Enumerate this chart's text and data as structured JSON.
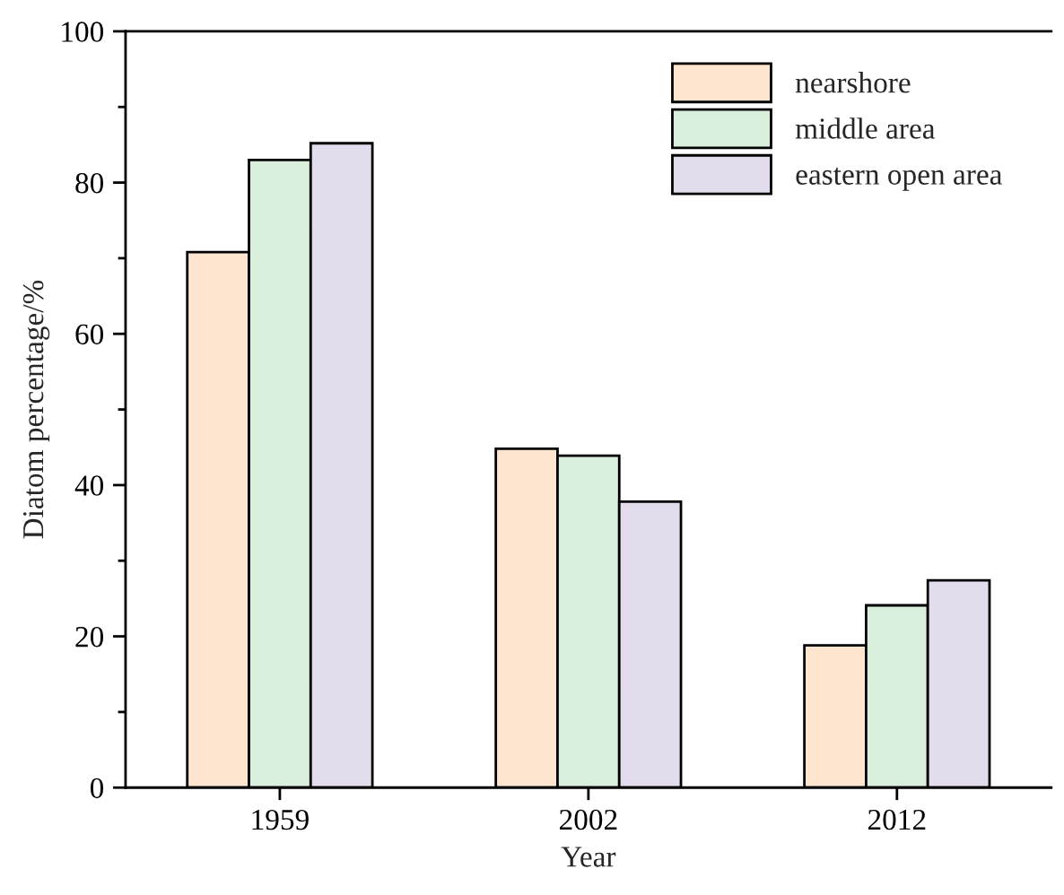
{
  "chart_data": {
    "type": "bar",
    "xlabel": "Year",
    "ylabel": "Diatom percentage/%",
    "categories": [
      "1959",
      "2002",
      "2012"
    ],
    "series": [
      {
        "name": "nearshore",
        "color": "#fde5d0",
        "values": [
          70.8,
          44.8,
          18.8
        ]
      },
      {
        "name": "middle area",
        "color": "#d9eedb",
        "values": [
          83.0,
          43.9,
          24.1
        ]
      },
      {
        "name": "eastern open area",
        "color": "#e2dced",
        "values": [
          85.2,
          37.8,
          27.4
        ]
      }
    ],
    "ylim": [
      0,
      100
    ],
    "yticks": [
      0,
      {
        "value": 10,
        "label": null
      },
      20,
      {
        "value": 30,
        "label": null
      },
      40,
      {
        "value": 50,
        "label": null
      },
      60,
      {
        "value": 70,
        "label": null
      },
      80,
      {
        "value": 90,
        "label": null
      },
      100
    ],
    "grid": false,
    "legend": "top right"
  }
}
